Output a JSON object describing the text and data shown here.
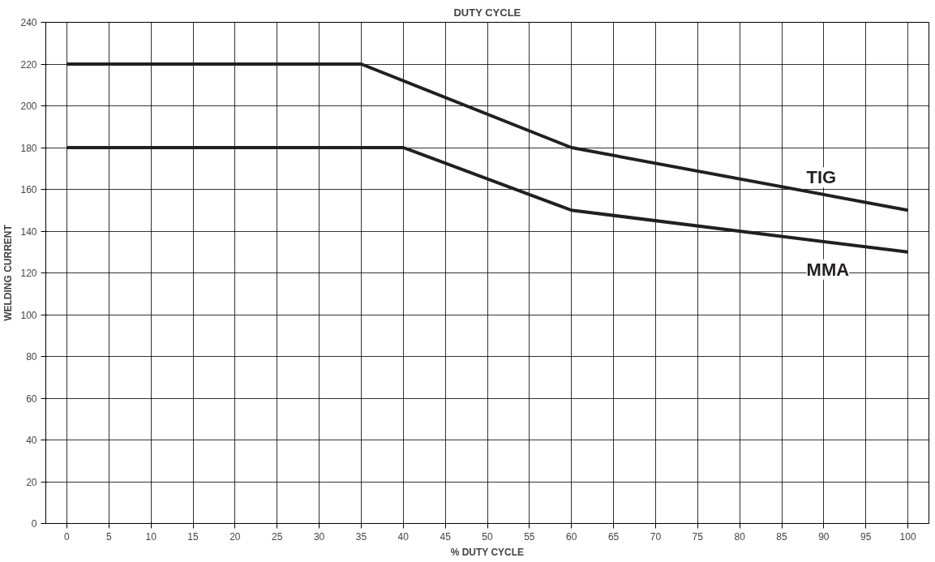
{
  "chart_data": {
    "type": "line",
    "title": "DUTY CYCLE",
    "xlabel": "% DUTY CYCLE",
    "ylabel": "WELDING CURRENT",
    "xlim": [
      -2.5,
      102.5
    ],
    "xticks": [
      0,
      5,
      10,
      15,
      20,
      25,
      30,
      35,
      40,
      45,
      50,
      55,
      60,
      65,
      70,
      75,
      80,
      85,
      90,
      95,
      100
    ],
    "ylim": [
      0,
      240
    ],
    "yticks": [
      0,
      20,
      40,
      60,
      80,
      100,
      120,
      140,
      160,
      180,
      200,
      220,
      240
    ],
    "grid": true,
    "legend": false,
    "marker": "none",
    "line_style": "solid",
    "series": [
      {
        "name": "TIG",
        "color": "#231f20",
        "x": [
          0,
          35,
          60,
          100
        ],
        "values": [
          220,
          220,
          180,
          150
        ]
      },
      {
        "name": "MMA",
        "color": "#231f20",
        "x": [
          0,
          40,
          60,
          100
        ],
        "values": [
          180,
          180,
          150,
          130
        ]
      }
    ]
  }
}
